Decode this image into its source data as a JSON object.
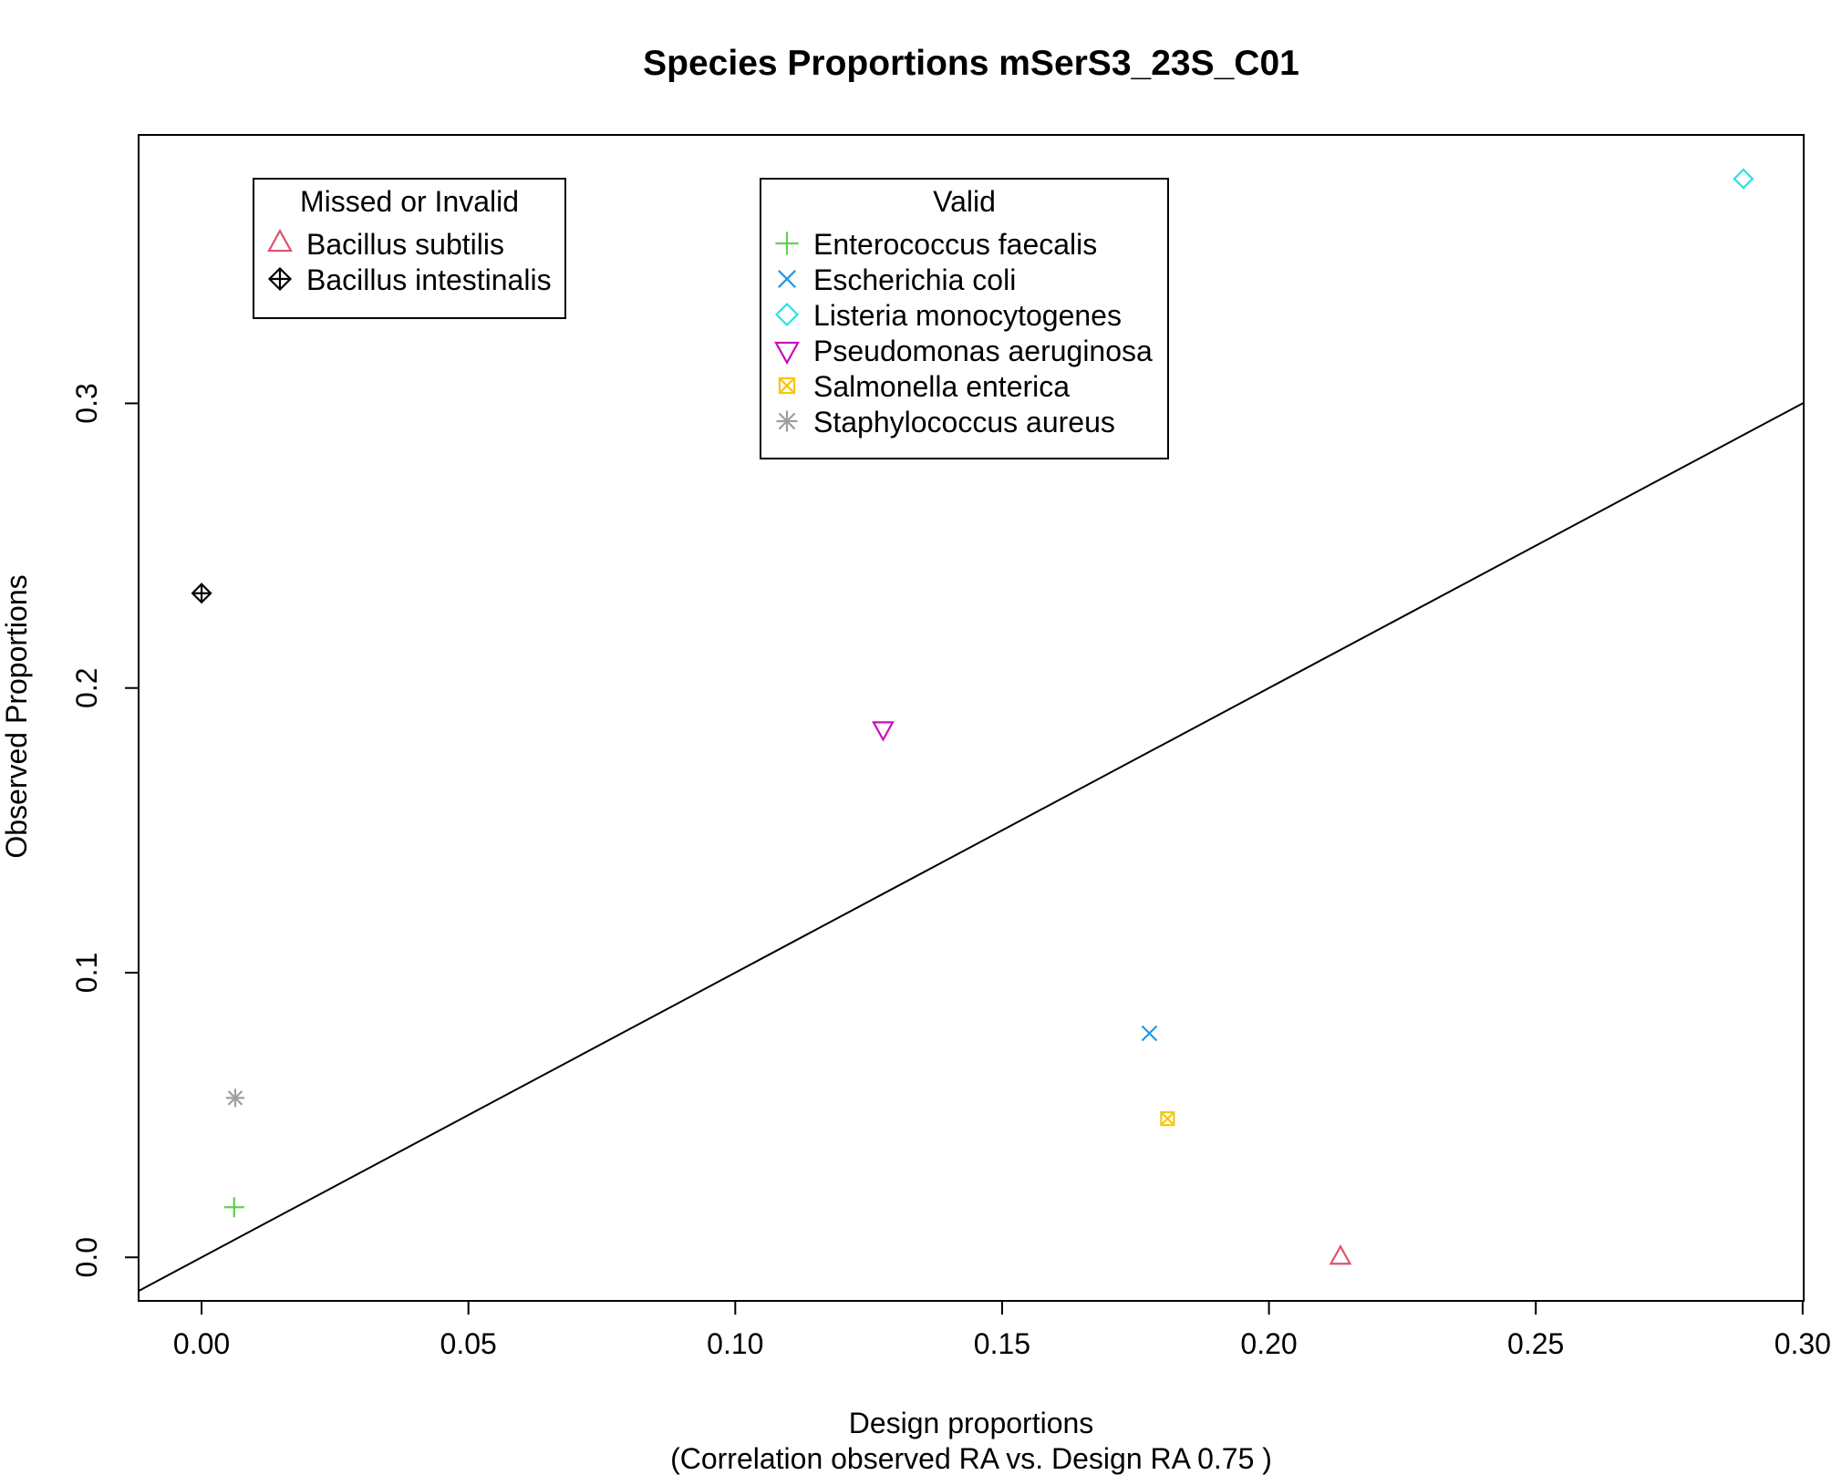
{
  "chart_data": {
    "type": "scatter",
    "title": "Species Proportions mSerS3_23S_C01",
    "xlabel": "Design proportions",
    "xlabel_sub": "(Correlation observed RA vs. Design RA  0.75 )",
    "ylabel": "Observed Proportions",
    "xlim": [
      -0.0118,
      0.3002
    ],
    "ylim": [
      -0.0153,
      0.3943
    ],
    "x_ticks": [
      0.0,
      0.05,
      0.1,
      0.15,
      0.2,
      0.25,
      0.3
    ],
    "x_tick_labels": [
      "0.00",
      "0.05",
      "0.10",
      "0.15",
      "0.20",
      "0.25",
      "0.30"
    ],
    "y_ticks": [
      0.0,
      0.1,
      0.2,
      0.3
    ],
    "y_tick_labels": [
      "0.0",
      "0.1",
      "0.2",
      "0.3"
    ],
    "grid": false,
    "reference_line": {
      "intercept": 0,
      "slope": 1
    },
    "legends": [
      {
        "title": "Missed or Invalid",
        "items": [
          {
            "label": "Bacillus subtilis",
            "marker": "triangle-up",
            "color": "#DF536B"
          },
          {
            "label": "Bacillus intestinalis",
            "marker": "diamond-plus",
            "color": "#000000"
          }
        ]
      },
      {
        "title": "Valid",
        "items": [
          {
            "label": "Enterococcus faecalis",
            "marker": "plus",
            "color": "#61D04F"
          },
          {
            "label": "Escherichia coli",
            "marker": "cross",
            "color": "#2297E6"
          },
          {
            "label": "Listeria monocytogenes",
            "marker": "diamond",
            "color": "#28E2E5"
          },
          {
            "label": "Pseudomonas aeruginosa",
            "marker": "triangle-down",
            "color": "#CD0BBC"
          },
          {
            "label": "Salmonella enterica",
            "marker": "square-x",
            "color": "#F5C710"
          },
          {
            "label": "Staphylococcus aureus",
            "marker": "asterisk",
            "color": "#9E9E9E"
          }
        ]
      }
    ],
    "series": [
      {
        "name": "Bacillus subtilis",
        "marker": "triangle-up",
        "color": "#DF536B",
        "x": 0.2134,
        "y": 0.0
      },
      {
        "name": "Bacillus intestinalis",
        "marker": "diamond-plus",
        "color": "#000000",
        "x": 0.0,
        "y": 0.2333
      },
      {
        "name": "Enterococcus faecalis",
        "marker": "plus",
        "color": "#61D04F",
        "x": 0.0061,
        "y": 0.0176
      },
      {
        "name": "Escherichia coli",
        "marker": "cross",
        "color": "#2297E6",
        "x": 0.1776,
        "y": 0.0787
      },
      {
        "name": "Listeria monocytogenes",
        "marker": "diamond",
        "color": "#28E2E5",
        "x": 0.2889,
        "y": 0.3789
      },
      {
        "name": "Pseudomonas aeruginosa",
        "marker": "triangle-down",
        "color": "#CD0BBC",
        "x": 0.1277,
        "y": 0.1857
      },
      {
        "name": "Salmonella enterica",
        "marker": "square-x",
        "color": "#F5C710",
        "x": 0.181,
        "y": 0.0487
      },
      {
        "name": "Staphylococcus aureus",
        "marker": "asterisk",
        "color": "#9E9E9E",
        "x": 0.0063,
        "y": 0.056
      }
    ]
  }
}
